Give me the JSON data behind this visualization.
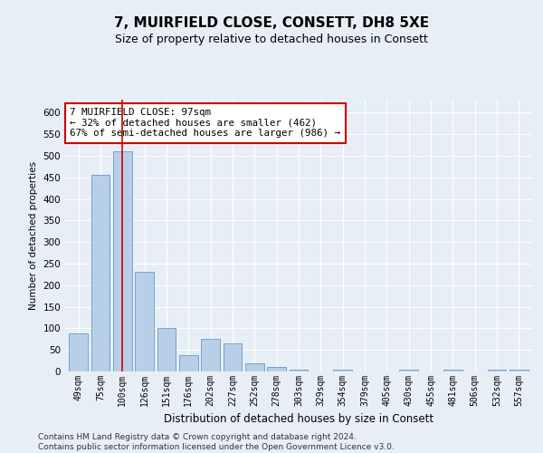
{
  "title": "7, MUIRFIELD CLOSE, CONSETT, DH8 5XE",
  "subtitle": "Size of property relative to detached houses in Consett",
  "xlabel": "Distribution of detached houses by size in Consett",
  "ylabel": "Number of detached properties",
  "bar_labels": [
    "49sqm",
    "75sqm",
    "100sqm",
    "126sqm",
    "151sqm",
    "176sqm",
    "202sqm",
    "227sqm",
    "252sqm",
    "278sqm",
    "303sqm",
    "329sqm",
    "354sqm",
    "379sqm",
    "405sqm",
    "430sqm",
    "455sqm",
    "481sqm",
    "506sqm",
    "532sqm",
    "557sqm"
  ],
  "bar_values": [
    88,
    455,
    510,
    232,
    100,
    37,
    75,
    65,
    18,
    10,
    5,
    0,
    5,
    0,
    0,
    5,
    0,
    5,
    0,
    5,
    5
  ],
  "bar_color": "#b8cfe8",
  "bar_edge_color": "#6699cc",
  "highlight_bar_index": 2,
  "highlight_line_color": "#cc0000",
  "annotation_text": "7 MUIRFIELD CLOSE: 97sqm\n← 32% of detached houses are smaller (462)\n67% of semi-detached houses are larger (986) →",
  "annotation_box_color": "#ffffff",
  "annotation_box_edge": "#cc0000",
  "ylim": [
    0,
    630
  ],
  "yticks": [
    0,
    50,
    100,
    150,
    200,
    250,
    300,
    350,
    400,
    450,
    500,
    550,
    600
  ],
  "footer": "Contains HM Land Registry data © Crown copyright and database right 2024.\nContains public sector information licensed under the Open Government Licence v3.0.",
  "bg_color": "#e8eef5",
  "plot_bg_color": "#e8eef5",
  "title_fontsize": 11,
  "subtitle_fontsize": 9,
  "footer_fontsize": 6.5
}
